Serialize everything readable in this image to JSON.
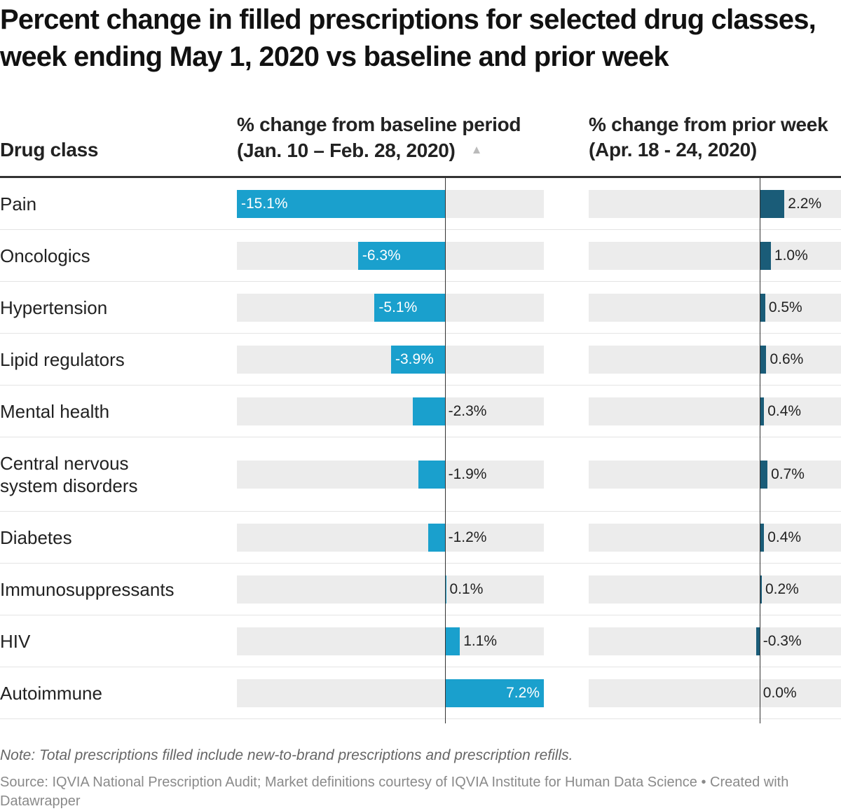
{
  "title": "Percent change in filled prescriptions for selected drug classes, week ending May 1, 2020 vs baseline and prior week",
  "headers": {
    "drug_class": "Drug class",
    "baseline_line1": "% change from baseline period",
    "baseline_line2": "(Jan. 10 – Feb. 28, 2020)",
    "prior_line1": "% change from prior week",
    "prior_line2": "(Apr. 18 - 24, 2020)",
    "sort_icon": "triangle-up-icon"
  },
  "colors": {
    "baseline_bar": "#1aa0cd",
    "prior_bar": "#1a5c78",
    "track": "#ececec"
  },
  "chart_data": {
    "type": "bar",
    "orientation": "horizontal",
    "categories": [
      "Pain",
      "Oncologics",
      "Hypertension",
      "Lipid regulators",
      "Mental health",
      "Central nervous system disorders",
      "Diabetes",
      "Immunosuppressants",
      "HIV",
      "Autoimmune"
    ],
    "series": [
      {
        "name": "% change from baseline period (Jan. 10 – Feb. 28, 2020)",
        "values": [
          -15.1,
          -6.3,
          -5.1,
          -3.9,
          -2.3,
          -1.9,
          -1.2,
          0.1,
          1.1,
          7.2
        ],
        "labels": [
          "-15.1%",
          "-6.3%",
          "-5.1%",
          "-3.9%",
          "-2.3%",
          "-1.9%",
          "-1.2%",
          "0.1%",
          "1.1%",
          "7.2%"
        ],
        "range": [
          -15.1,
          7.2
        ]
      },
      {
        "name": "% change from prior week (Apr. 18 - 24, 2020)",
        "values": [
          2.2,
          1.0,
          0.5,
          0.6,
          0.4,
          0.7,
          0.4,
          0.2,
          -0.3,
          0.0
        ],
        "labels": [
          "2.2%",
          "1.0%",
          "0.5%",
          "0.6%",
          "0.4%",
          "0.7%",
          "0.4%",
          "0.2%",
          "-0.3%",
          "0.0%"
        ],
        "range": [
          -15.1,
          7.2
        ]
      }
    ],
    "sorted_by": "% change from baseline period, ascending",
    "grid": false
  },
  "note": "Note: Total prescriptions filled include new-to-brand prescriptions and prescription refills.",
  "source": "Source: IQVIA National Prescription Audit; Market definitions courtesy of IQVIA Institute for Human Data Science • Created with Datawrapper"
}
